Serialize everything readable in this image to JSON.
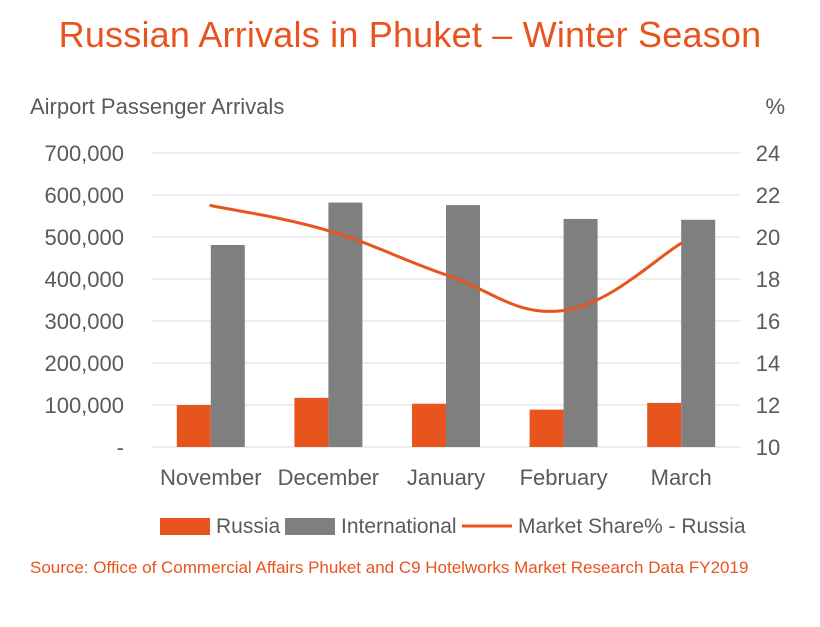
{
  "title": "Russian Arrivals in Phuket – Winter Season",
  "source": "Source: Office of Commercial Affairs Phuket and C9 Hotelworks Market Research Data FY2019",
  "colors": {
    "title": "#e8541e",
    "russia": "#e8541e",
    "international": "#7f7f7f",
    "market_share": "#e8541e",
    "grid": "#d9d9d9",
    "text": "#5a5a5a"
  },
  "chart_data": {
    "type": "bar",
    "title": "Russian Arrivals in Phuket – Winter Season",
    "ylabel": "Airport Passenger Arrivals",
    "y2label": "%",
    "categories": [
      "November",
      "December",
      "January",
      "February",
      "March"
    ],
    "ylim": [
      0,
      700000
    ],
    "y2lim": [
      10,
      24
    ],
    "y_ticks": [
      "-",
      "100,000",
      "200,000",
      "300,000",
      "400,000",
      "500,000",
      "600,000",
      "700,000"
    ],
    "y2_ticks": [
      "10",
      "12",
      "14",
      "16",
      "18",
      "20",
      "22",
      "24"
    ],
    "grid": true,
    "legend_position": "bottom",
    "series": [
      {
        "name": "Russia",
        "type": "bar",
        "axis": "left",
        "values": [
          100000,
          117000,
          103000,
          89000,
          105000
        ]
      },
      {
        "name": "International",
        "type": "bar",
        "axis": "left",
        "values": [
          481000,
          582000,
          576000,
          543000,
          541000
        ]
      },
      {
        "name": "Market Share% - Russia",
        "type": "line",
        "axis": "right",
        "values": [
          21.5,
          20.3,
          18.2,
          16.5,
          19.7
        ]
      }
    ]
  }
}
